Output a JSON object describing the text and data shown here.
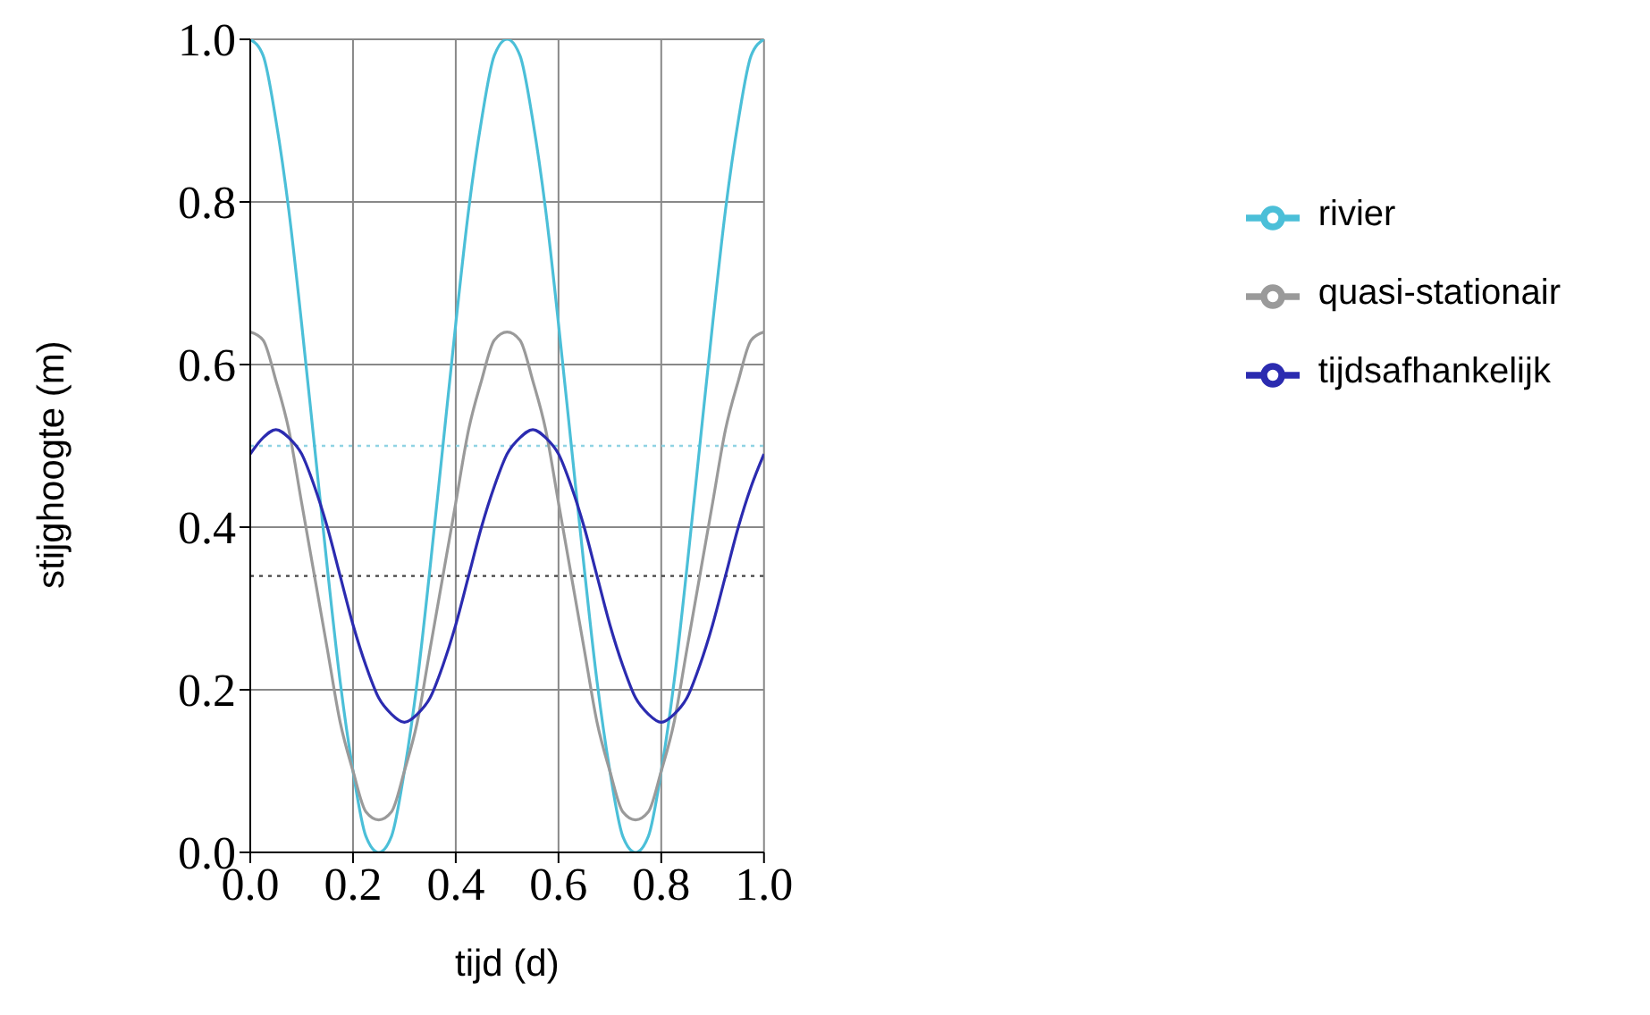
{
  "chart_data": {
    "type": "line",
    "xlabel": "tijd (d)",
    "ylabel": "stijghoogte (m)",
    "x": [
      0,
      0.025,
      0.05,
      0.075,
      0.1,
      0.125,
      0.15,
      0.175,
      0.2,
      0.225,
      0.25,
      0.275,
      0.3,
      0.325,
      0.35,
      0.375,
      0.4,
      0.425,
      0.45,
      0.475,
      0.5,
      0.525,
      0.55,
      0.575,
      0.6,
      0.625,
      0.65,
      0.675,
      0.7,
      0.725,
      0.75,
      0.775,
      0.8,
      0.825,
      0.85,
      0.875,
      0.9,
      0.925,
      0.95,
      0.975,
      1
    ],
    "series": [
      {
        "name": "rivier",
        "color": "#4bbfd8",
        "values": [
          1.0,
          0.98,
          0.9,
          0.79,
          0.65,
          0.5,
          0.35,
          0.21,
          0.1,
          0.02,
          0.0,
          0.02,
          0.1,
          0.21,
          0.35,
          0.5,
          0.65,
          0.79,
          0.9,
          0.98,
          1.0,
          0.98,
          0.9,
          0.79,
          0.65,
          0.5,
          0.35,
          0.21,
          0.1,
          0.02,
          0.0,
          0.02,
          0.1,
          0.21,
          0.35,
          0.5,
          0.65,
          0.79,
          0.9,
          0.98,
          1.0
        ]
      },
      {
        "name": "quasi-stationair",
        "color": "#9a9a9a",
        "values": [
          0.64,
          0.63,
          0.58,
          0.52,
          0.43,
          0.34,
          0.25,
          0.16,
          0.1,
          0.05,
          0.04,
          0.05,
          0.1,
          0.16,
          0.25,
          0.34,
          0.43,
          0.52,
          0.58,
          0.63,
          0.64,
          0.63,
          0.58,
          0.52,
          0.43,
          0.34,
          0.25,
          0.16,
          0.1,
          0.05,
          0.04,
          0.05,
          0.1,
          0.16,
          0.25,
          0.34,
          0.43,
          0.52,
          0.58,
          0.63,
          0.64
        ]
      },
      {
        "name": "tijdsafhankelijk",
        "color": "#2b2bb0",
        "values": [
          0.49,
          0.51,
          0.52,
          0.51,
          0.49,
          0.45,
          0.4,
          0.34,
          0.28,
          0.23,
          0.19,
          0.17,
          0.16,
          0.17,
          0.19,
          0.23,
          0.28,
          0.34,
          0.4,
          0.45,
          0.49,
          0.51,
          0.52,
          0.51,
          0.49,
          0.45,
          0.4,
          0.34,
          0.28,
          0.23,
          0.19,
          0.17,
          0.16,
          0.17,
          0.19,
          0.23,
          0.28,
          0.34,
          0.4,
          0.45,
          0.49
        ]
      }
    ],
    "xlim": [
      0,
      1
    ],
    "xticks": [
      {
        "value": 0,
        "label": "0.0"
      },
      {
        "value": 0.2,
        "label": "0.2"
      },
      {
        "value": 0.4,
        "label": "0.4"
      },
      {
        "value": 0.6,
        "label": "0.6"
      },
      {
        "value": 0.8,
        "label": "0.8"
      },
      {
        "value": 1,
        "label": "1.0"
      }
    ],
    "ylim": [
      0,
      1
    ],
    "yticks": [
      {
        "value": 0,
        "label": "0.0"
      },
      {
        "value": 0.2,
        "label": "0.2"
      },
      {
        "value": 0.4,
        "label": "0.4"
      },
      {
        "value": 0.6,
        "label": "0.6"
      },
      {
        "value": 0.8,
        "label": "0.8"
      },
      {
        "value": 1,
        "label": "1.0"
      }
    ],
    "ref_lines": [
      {
        "axis": "y",
        "value": 0.5,
        "color": "#8fd3e3",
        "line_style": "dotted"
      },
      {
        "axis": "y",
        "value": 0.34,
        "color": "#444444",
        "line_style": "dotted"
      }
    ],
    "grid": true,
    "legend": "right",
    "marker": "none",
    "line_style": "solid"
  }
}
